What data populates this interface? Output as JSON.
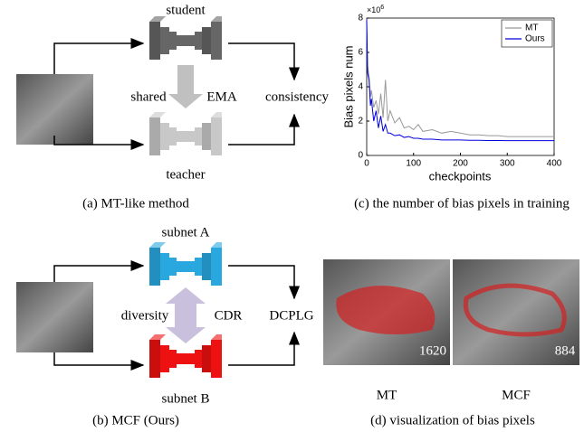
{
  "panel_a": {
    "student": "student",
    "teacher": "teacher",
    "shared": "shared",
    "ema": "EMA",
    "consistency": "consistency",
    "caption": "(a) MT-like method"
  },
  "panel_b": {
    "subnet_a": "subnet A",
    "subnet_b": "subnet B",
    "diversity": "diversity",
    "cdr": "CDR",
    "dcplg": "DCPLG",
    "caption": "(b) MCF (Ours)"
  },
  "chart_data": {
    "type": "line",
    "caption": "(c) the number of bias pixels in training",
    "xlabel": "checkpoints",
    "ylabel": "Bias pixels num",
    "y_multiplier": {
      "base": "×10",
      "exponent": "6"
    },
    "x": [
      0,
      2,
      5,
      8,
      10,
      15,
      20,
      25,
      30,
      35,
      40,
      45,
      50,
      60,
      70,
      80,
      90,
      100,
      110,
      120,
      140,
      160,
      180,
      200,
      220,
      240,
      260,
      280,
      300,
      320,
      340,
      360,
      380,
      400
    ],
    "series": [
      {
        "name": "MT",
        "color": "#999999",
        "values": [
          7.6,
          5.2,
          4.6,
          3.4,
          3.8,
          2.8,
          3.2,
          2.4,
          3.6,
          2.2,
          4.4,
          2.0,
          2.6,
          1.9,
          2.2,
          1.6,
          1.7,
          1.5,
          1.8,
          1.4,
          1.5,
          1.3,
          1.4,
          1.3,
          1.2,
          1.2,
          1.15,
          1.15,
          1.1,
          1.1,
          1.1,
          1.1,
          1.1,
          1.1
        ]
      },
      {
        "name": "Ours",
        "color": "#0000dd",
        "values": [
          7.9,
          4.8,
          4.4,
          2.9,
          3.3,
          2.0,
          2.6,
          1.6,
          2.3,
          1.4,
          1.8,
          1.3,
          1.3,
          1.15,
          1.2,
          1.05,
          1.1,
          1.0,
          1.0,
          0.95,
          0.95,
          0.9,
          0.9,
          0.9,
          0.88,
          0.88,
          0.87,
          0.87,
          0.86,
          0.86,
          0.86,
          0.86,
          0.86,
          0.86
        ]
      }
    ],
    "xlim": [
      0,
      400
    ],
    "xticks": [
      0,
      100,
      200,
      300,
      400
    ],
    "ylim": [
      0,
      8
    ],
    "yticks": [
      0,
      2,
      4,
      6,
      8
    ],
    "grid": false,
    "legend": "upper right"
  },
  "panel_d": {
    "mt_count": "1620",
    "mcf_count": "884",
    "mt_label": "MT",
    "mcf_label": "MCF",
    "caption": "(d) visualization of bias pixels"
  }
}
